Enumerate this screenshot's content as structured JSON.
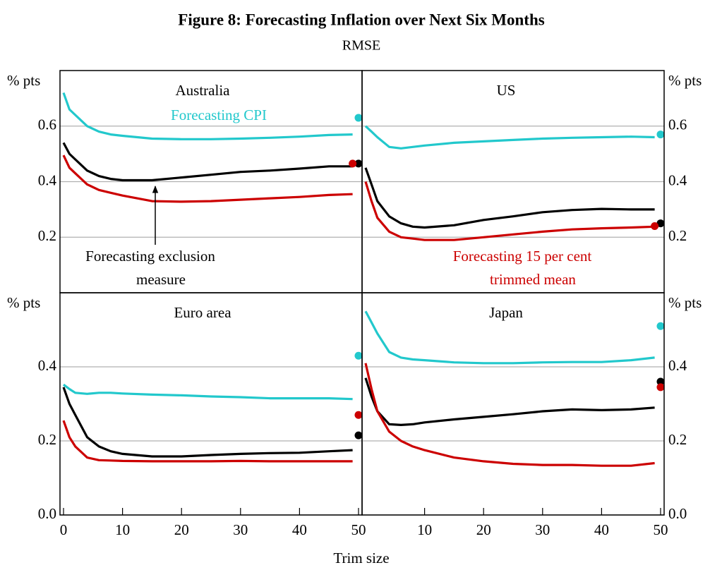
{
  "title": "Figure 8: Forecasting Inflation over Next Six Months",
  "subtitle": "RMSE",
  "x_label": "Trim size",
  "chart_data": [
    {
      "type": "line",
      "title": "Australia",
      "ylabel": "% pts",
      "yaxis_side": "left",
      "x": [
        0,
        1,
        2,
        4,
        6,
        8,
        10,
        15,
        20,
        25,
        30,
        35,
        40,
        45,
        49
      ],
      "xlim": [
        -0.6,
        50.6
      ],
      "xticks": [],
      "ylim": [
        0,
        0.8
      ],
      "yticks": [
        0.2,
        0.4,
        0.6
      ],
      "grid": true,
      "series": [
        {
          "color": "#22c8cc",
          "values": [
            0.72,
            0.66,
            0.64,
            0.6,
            0.58,
            0.57,
            0.565,
            0.555,
            0.553,
            0.553,
            0.555,
            0.558,
            0.562,
            0.568,
            0.57
          ],
          "dot": {
            "x": 50,
            "y": 0.63
          }
        },
        {
          "color": "#000000",
          "values": [
            0.54,
            0.5,
            0.48,
            0.44,
            0.42,
            0.41,
            0.405,
            0.405,
            0.415,
            0.425,
            0.435,
            0.44,
            0.447,
            0.455,
            0.455
          ],
          "dot": {
            "x": 50,
            "y": 0.465
          }
        },
        {
          "color": "#cc0000",
          "values": [
            0.495,
            0.45,
            0.43,
            0.39,
            0.37,
            0.36,
            0.35,
            0.33,
            0.328,
            0.33,
            0.335,
            0.34,
            0.345,
            0.352,
            0.355
          ],
          "dot": {
            "x": 49,
            "y": 0.465
          }
        }
      ],
      "annotations": [
        {
          "lines": [
            "Forecasting CPI"
          ],
          "color": "#22c8cc"
        },
        {
          "lines": [
            "Forecasting exclusion",
            "measure"
          ],
          "color": "#000000"
        }
      ]
    },
    {
      "type": "line",
      "title": "US",
      "ylabel": "% pts",
      "yaxis_side": "right",
      "x": [
        0,
        1,
        2,
        4,
        6,
        8,
        10,
        15,
        20,
        25,
        30,
        35,
        40,
        45,
        49
      ],
      "xlim": [
        -0.6,
        50.6
      ],
      "xticks": [],
      "ylim": [
        0,
        0.8
      ],
      "yticks": [
        0.2,
        0.4,
        0.6
      ],
      "grid": true,
      "series": [
        {
          "color": "#22c8cc",
          "values": [
            0.6,
            0.58,
            0.56,
            0.525,
            0.52,
            0.525,
            0.53,
            0.54,
            0.545,
            0.55,
            0.555,
            0.558,
            0.56,
            0.562,
            0.56
          ],
          "dot": {
            "x": 50,
            "y": 0.57
          }
        },
        {
          "color": "#000000",
          "values": [
            0.45,
            0.39,
            0.33,
            0.275,
            0.25,
            0.238,
            0.235,
            0.243,
            0.262,
            0.275,
            0.29,
            0.298,
            0.302,
            0.3,
            0.3
          ],
          "dot": {
            "x": 50,
            "y": 0.25
          }
        },
        {
          "color": "#cc0000",
          "values": [
            0.4,
            0.33,
            0.27,
            0.22,
            0.2,
            0.195,
            0.19,
            0.19,
            0.2,
            0.21,
            0.22,
            0.228,
            0.232,
            0.235,
            0.238
          ],
          "dot": {
            "x": 49,
            "y": 0.24
          }
        }
      ],
      "annotations": [
        {
          "lines": [
            "Forecasting 15 per cent",
            "trimmed mean"
          ],
          "color": "#cc0000"
        }
      ]
    },
    {
      "type": "line",
      "title": "Euro area",
      "ylabel": "% pts",
      "yaxis_side": "left",
      "x": [
        0,
        1,
        2,
        4,
        6,
        8,
        10,
        15,
        20,
        25,
        30,
        35,
        40,
        45,
        49
      ],
      "xlim": [
        -0.6,
        50.6
      ],
      "xticks": [
        0,
        10,
        20,
        30,
        40,
        50
      ],
      "ylim": [
        0,
        0.6
      ],
      "yticks": [
        {
          "value": 0,
          "label": "0.0"
        },
        0.2,
        0.4
      ],
      "grid": true,
      "series": [
        {
          "color": "#22c8cc",
          "values": [
            0.352,
            0.34,
            0.33,
            0.327,
            0.33,
            0.33,
            0.328,
            0.325,
            0.323,
            0.32,
            0.318,
            0.315,
            0.315,
            0.315,
            0.313
          ],
          "dot": {
            "x": 50,
            "y": 0.43
          }
        },
        {
          "color": "#000000",
          "values": [
            0.345,
            0.3,
            0.27,
            0.21,
            0.185,
            0.172,
            0.165,
            0.158,
            0.158,
            0.162,
            0.165,
            0.167,
            0.168,
            0.172,
            0.175
          ],
          "dot": {
            "x": 50,
            "y": 0.215
          }
        },
        {
          "color": "#cc0000",
          "values": [
            0.255,
            0.21,
            0.185,
            0.155,
            0.148,
            0.147,
            0.146,
            0.145,
            0.145,
            0.145,
            0.146,
            0.145,
            0.145,
            0.145,
            0.145
          ],
          "dot": {
            "x": 50,
            "y": 0.27
          }
        }
      ],
      "annotations": []
    },
    {
      "type": "line",
      "title": "Japan",
      "ylabel": "% pts",
      "yaxis_side": "right",
      "x": [
        0,
        1,
        2,
        4,
        6,
        8,
        10,
        15,
        20,
        25,
        30,
        35,
        40,
        45,
        49
      ],
      "xlim": [
        -0.6,
        50.6
      ],
      "xticks": [
        10,
        20,
        30,
        40,
        50
      ],
      "ylim": [
        0,
        0.6
      ],
      "yticks": [
        {
          "value": 0,
          "label": "0.0"
        },
        0.2,
        0.4
      ],
      "grid": true,
      "series": [
        {
          "color": "#22c8cc",
          "values": [
            0.55,
            0.52,
            0.49,
            0.44,
            0.425,
            0.42,
            0.418,
            0.412,
            0.41,
            0.41,
            0.412,
            0.413,
            0.413,
            0.418,
            0.425
          ],
          "dot": {
            "x": 50,
            "y": 0.51
          }
        },
        {
          "color": "#000000",
          "values": [
            0.37,
            0.32,
            0.28,
            0.245,
            0.243,
            0.245,
            0.25,
            0.258,
            0.265,
            0.272,
            0.28,
            0.285,
            0.283,
            0.285,
            0.29
          ],
          "dot": {
            "x": 50,
            "y": 0.36
          }
        },
        {
          "color": "#cc0000",
          "values": [
            0.41,
            0.34,
            0.28,
            0.225,
            0.2,
            0.185,
            0.175,
            0.155,
            0.145,
            0.138,
            0.135,
            0.135,
            0.133,
            0.133,
            0.14
          ],
          "dot": {
            "x": 50,
            "y": 0.345
          }
        }
      ],
      "annotations": []
    }
  ]
}
